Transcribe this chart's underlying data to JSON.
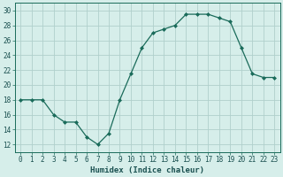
{
  "title": "",
  "xlabel": "Humidex (Indice chaleur)",
  "ylabel": "",
  "x": [
    0,
    1,
    2,
    3,
    4,
    5,
    6,
    7,
    8,
    9,
    10,
    11,
    12,
    13,
    14,
    15,
    16,
    17,
    18,
    19,
    20,
    21,
    22,
    23
  ],
  "y": [
    18,
    18,
    18,
    16,
    15,
    15,
    13,
    12,
    13.5,
    18,
    21.5,
    25,
    27,
    27.5,
    28,
    29.5,
    29.5,
    29.5,
    29,
    28.5,
    25,
    21.5,
    21,
    21
  ],
  "ylim": [
    11,
    31
  ],
  "yticks": [
    12,
    14,
    16,
    18,
    20,
    22,
    24,
    26,
    28,
    30
  ],
  "xticks": [
    0,
    1,
    2,
    3,
    4,
    5,
    6,
    7,
    8,
    9,
    10,
    11,
    12,
    13,
    14,
    15,
    16,
    17,
    18,
    19,
    20,
    21,
    22,
    23
  ],
  "line_color": "#1a6b5a",
  "marker": "D",
  "marker_size": 2.0,
  "bg_color": "#d6eeea",
  "grid_color": "#b0d0cc",
  "axis_color": "#1a6b5a",
  "label_color": "#1a5050",
  "tick_fontsize": 5.5,
  "xlabel_fontsize": 6.5
}
